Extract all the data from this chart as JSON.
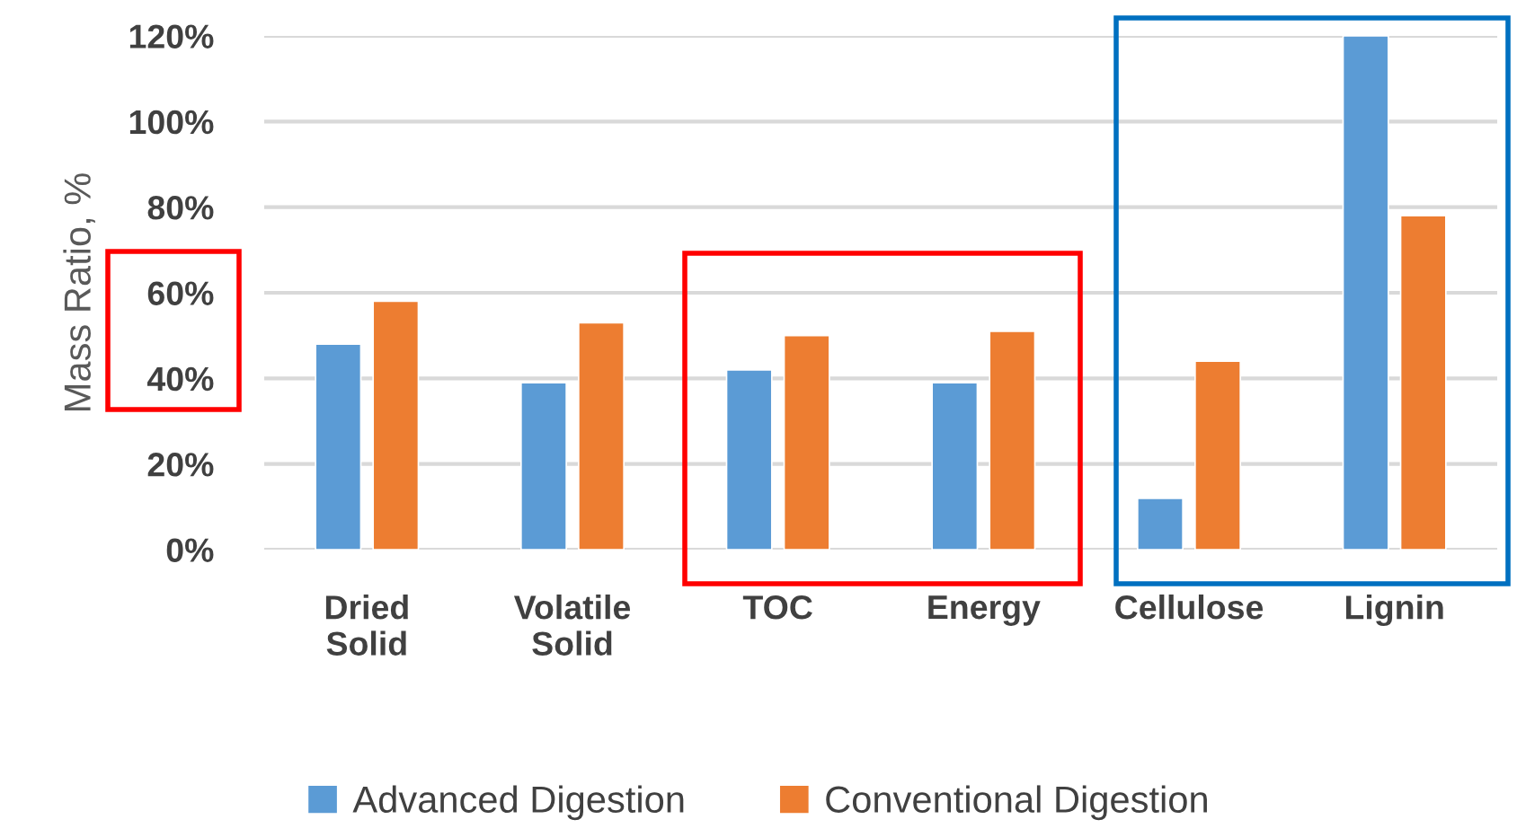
{
  "chart_data": {
    "type": "bar",
    "ylabel": "Mass Ratio, %",
    "categories": [
      "Dried\nSolid",
      "Volatile\nSolid",
      "TOC",
      "Energy",
      "Cellulose",
      "Lignin"
    ],
    "series": [
      {
        "name": "Advanced Digestion",
        "color": "#5b9bd5",
        "values": [
          48,
          39,
          42,
          39,
          12,
          120
        ]
      },
      {
        "name": "Conventional Digestion",
        "color": "#ed7d31",
        "values": [
          58,
          53,
          50,
          51,
          44,
          78
        ]
      }
    ],
    "ylim": [
      0,
      120
    ],
    "yticks": [
      {
        "value": 0,
        "label": "0%"
      },
      {
        "value": 20,
        "label": "20%"
      },
      {
        "value": 40,
        "label": "40%"
      },
      {
        "value": 60,
        "label": "60%"
      },
      {
        "value": 80,
        "label": "80%"
      },
      {
        "value": 100,
        "label": "100%"
      },
      {
        "value": 120,
        "label": "120%"
      }
    ],
    "grid": "y",
    "legend": "bottom"
  }
}
